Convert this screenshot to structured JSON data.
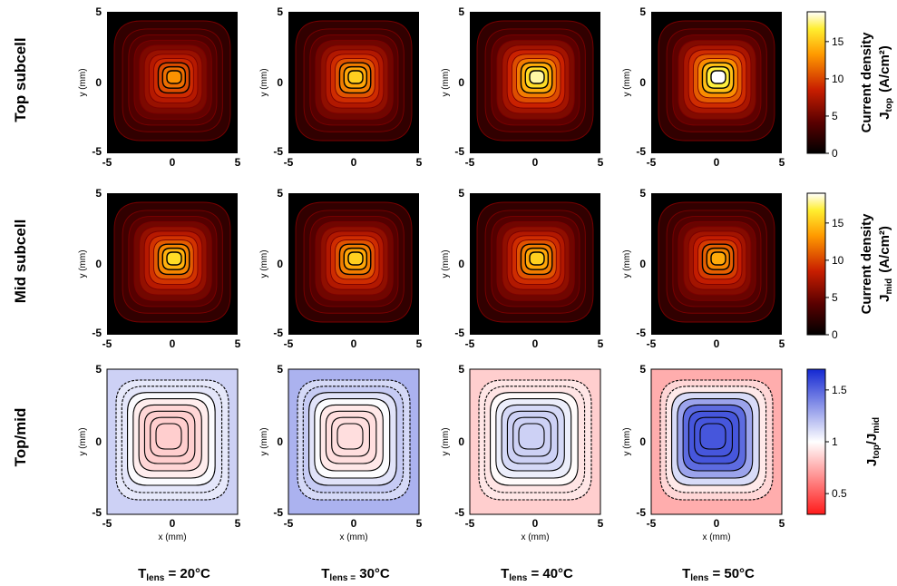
{
  "figure": {
    "row_labels": [
      "Top subcell",
      "Mid subcell",
      "Top/mid"
    ],
    "col_labels": [
      {
        "pre": "T",
        "sub": "lens",
        "rest": " = 20°C"
      },
      {
        "pre": "T",
        "sub": "lens =",
        "rest": " 30°C"
      },
      {
        "pre": "T",
        "sub": "lens",
        "rest": " = 40°C"
      },
      {
        "pre": "T",
        "sub": "lens",
        "rest": " = 50°C"
      }
    ],
    "colorbars": [
      {
        "title": "Current density",
        "sym": "J",
        "sub": "top",
        "unit": "(A/cm²)",
        "ticks": [
          "15",
          "10",
          "5",
          "0"
        ],
        "tick_values": [
          15,
          10,
          5,
          0
        ],
        "range": [
          0,
          19
        ]
      },
      {
        "title": "Current density",
        "sym": "J",
        "sub": "mid",
        "unit": "(A/cm²)",
        "ticks": [
          "15",
          "10",
          "5",
          "0"
        ],
        "tick_values": [
          15,
          10,
          5,
          0
        ],
        "range": [
          0,
          19
        ]
      },
      {
        "sym1": "J",
        "sub1": "top",
        "sep": "/",
        "sym2": "J",
        "sub2": "mid",
        "ticks": [
          "1.5",
          "1",
          "0.5"
        ],
        "tick_values": [
          1.5,
          1.0,
          0.5
        ],
        "range": [
          0.3,
          1.7
        ]
      }
    ]
  },
  "chart_data": {
    "type": "heatmap",
    "layout": "3 rows x 4 columns of contour maps",
    "x_axis": {
      "label": "x (mm)",
      "range": [
        -5,
        5
      ],
      "ticks": [
        "-5",
        "0",
        "5"
      ]
    },
    "y_axis": {
      "label": "y (mm)",
      "range": [
        -5,
        5
      ],
      "ticks": [
        "-5",
        "0",
        "5"
      ]
    },
    "rows": [
      {
        "label": "Top subcell",
        "quantity": "Jtop (A/cm²)",
        "colormap": "hot",
        "panels": [
          {
            "T_lens_C": 20,
            "peak": 13
          },
          {
            "T_lens_C": 30,
            "peak": 15.5
          },
          {
            "T_lens_C": 40,
            "peak": 18
          },
          {
            "T_lens_C": 50,
            "peak": 19
          }
        ]
      },
      {
        "label": "Mid subcell",
        "quantity": "Jmid (A/cm²)",
        "colormap": "hot",
        "panels": [
          {
            "T_lens_C": 20,
            "peak": 16
          },
          {
            "T_lens_C": 30,
            "peak": 15.5
          },
          {
            "T_lens_C": 40,
            "peak": 15.5
          },
          {
            "T_lens_C": 50,
            "peak": 14
          }
        ]
      },
      {
        "label": "Top/mid",
        "quantity": "Jtop/Jmid",
        "colormap": "red-white-blue",
        "panels": [
          {
            "T_lens_C": 20,
            "center": 0.85,
            "edge": 1.15
          },
          {
            "T_lens_C": 30,
            "center": 0.9,
            "edge": 1.25
          },
          {
            "T_lens_C": 40,
            "center": 1.15,
            "edge": 0.85
          },
          {
            "T_lens_C": 50,
            "center": 1.55,
            "edge": 0.75
          }
        ]
      }
    ]
  }
}
